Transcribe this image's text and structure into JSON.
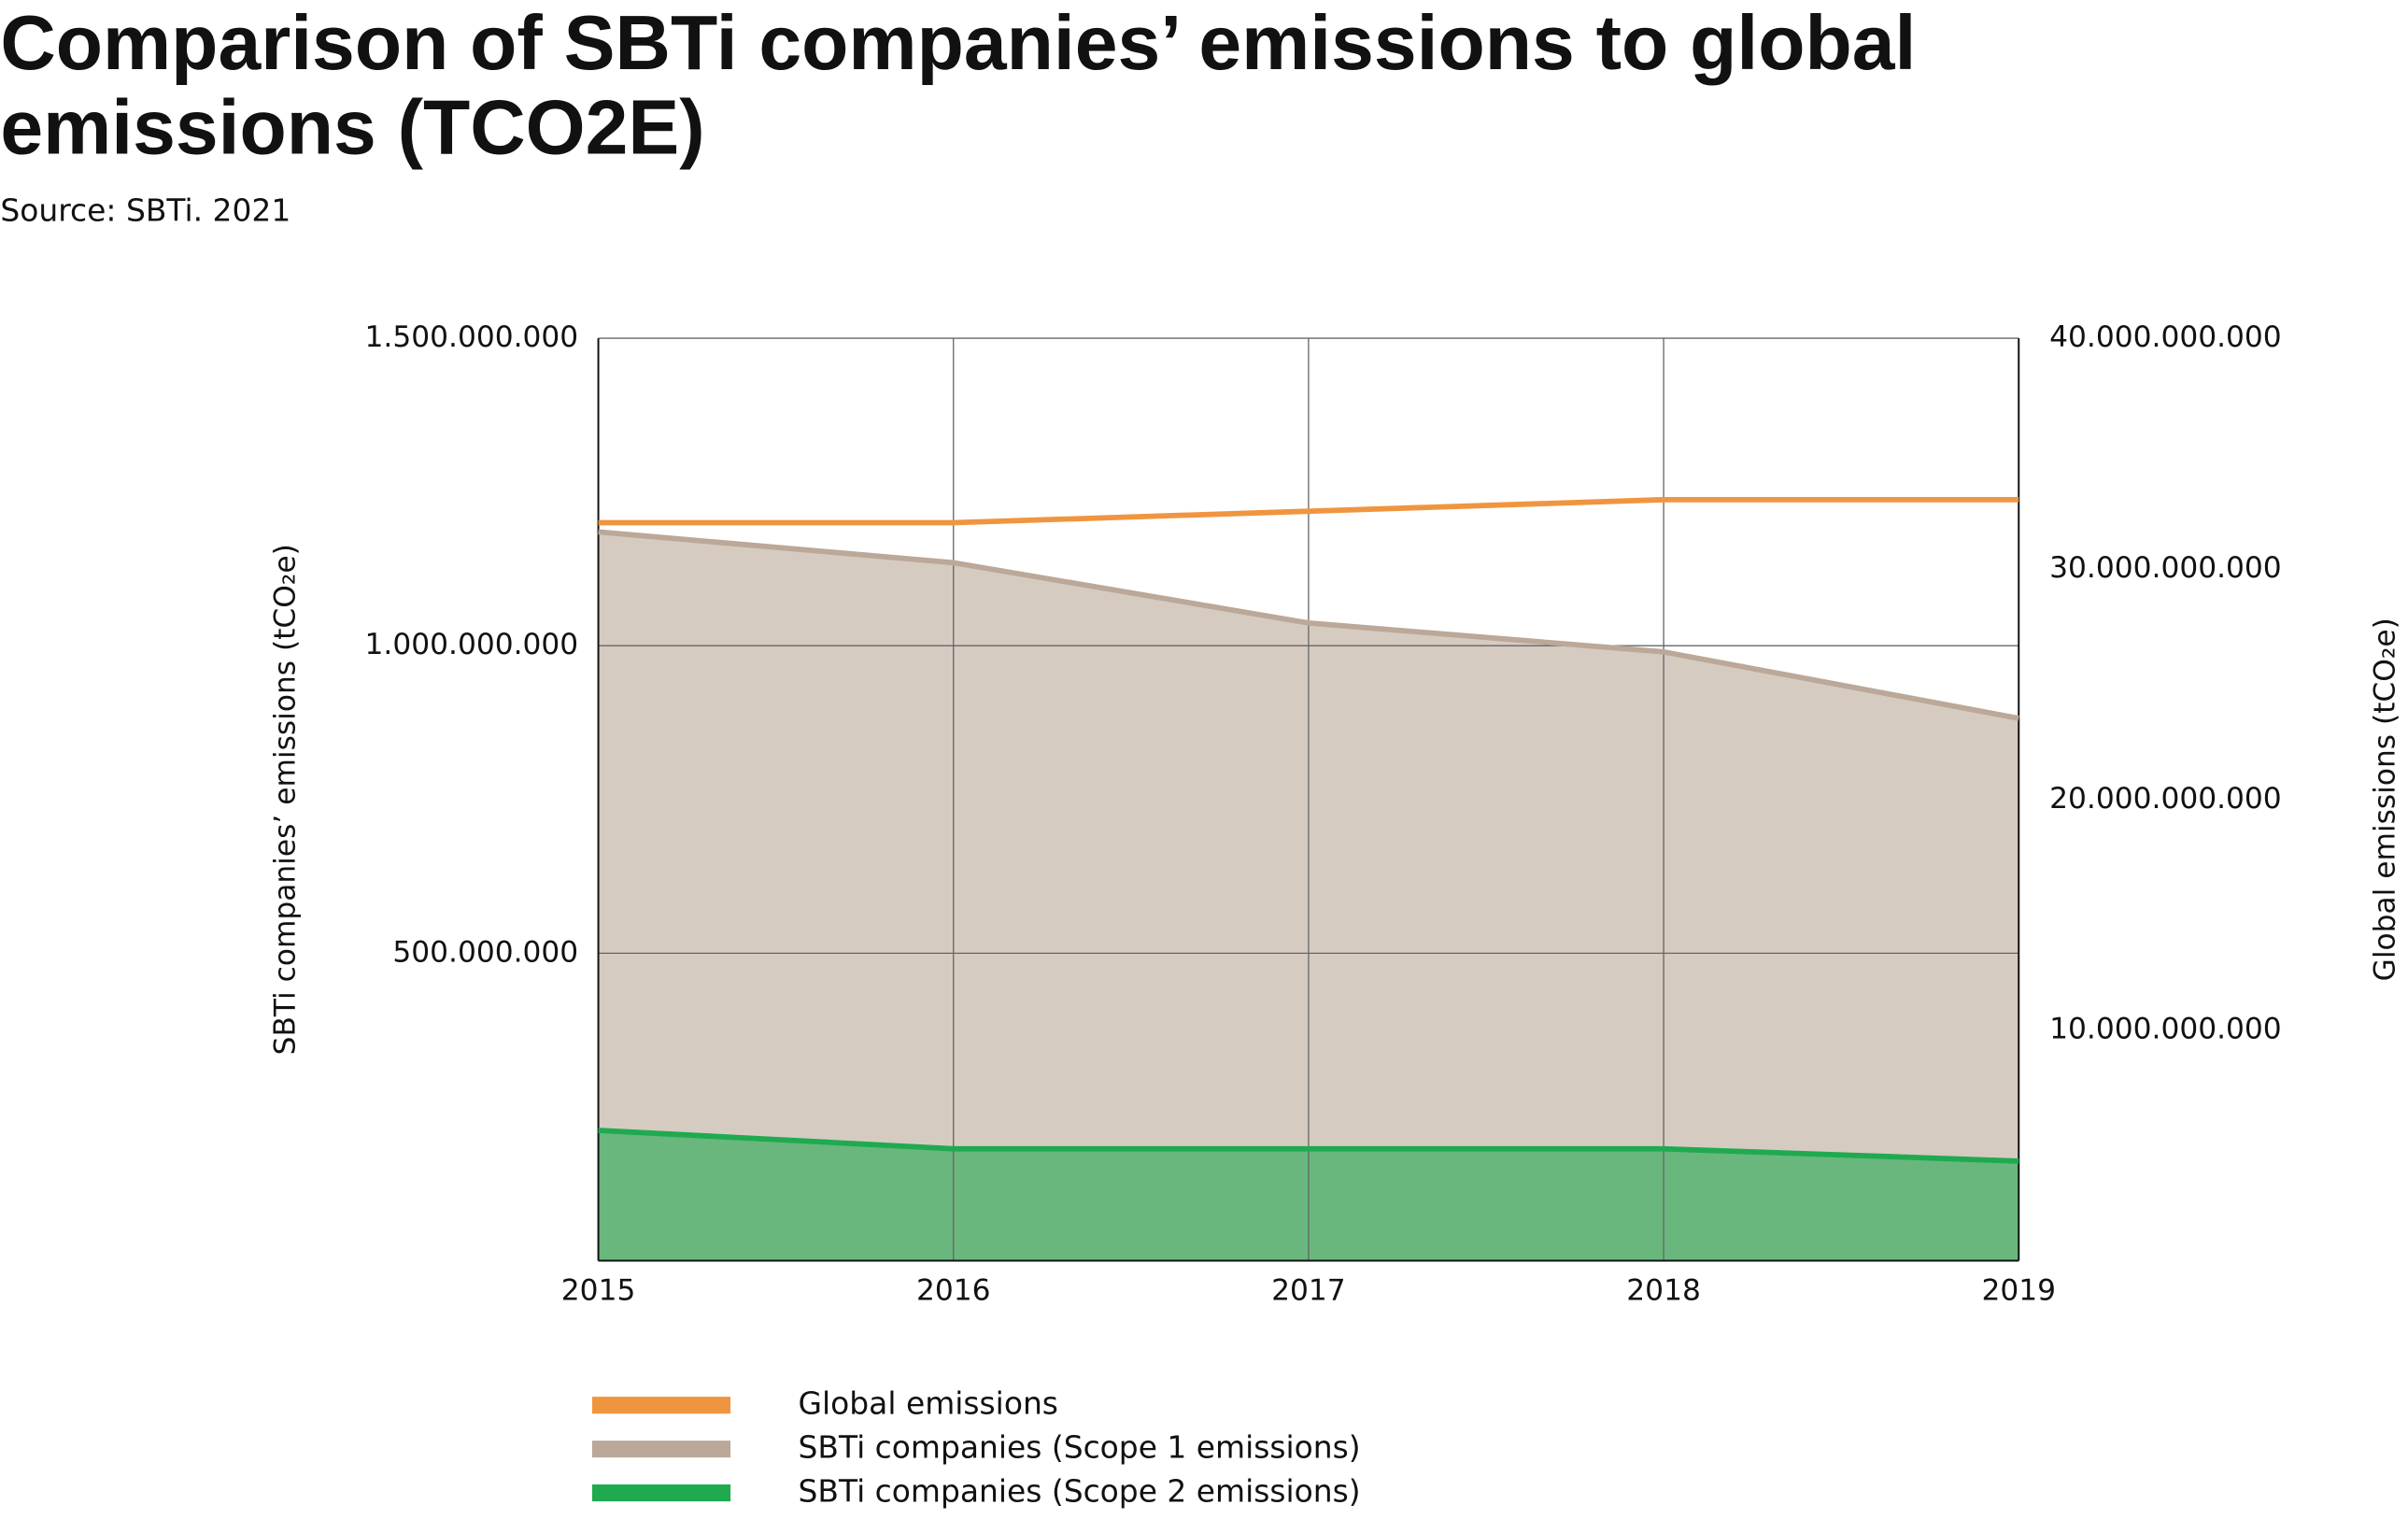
{
  "chart_data": {
    "type": "area",
    "title": [
      "Comparison of SBTi companies’ emissions to global",
      "emissions (TCO2E)"
    ],
    "subtitle": "Source: SBTi. 2021",
    "y_label": "SBTi companies’ emissions (tCO₂e)",
    "y2_label": "Global emissions (tCO₂e)",
    "categories": [
      "2015",
      "2016",
      "2017",
      "2018",
      "2019"
    ],
    "series": [
      {
        "name": "Global emissions",
        "color": "#f0953f",
        "axis": "y2",
        "values": [
          32000000000,
          32000000000,
          32500000000,
          33000000000,
          33000000000
        ]
      },
      {
        "name": "SBTi companies (Scope 1 emissions)",
        "color": "#bba898",
        "values": [
          1185000000,
          1135000000,
          1037000000,
          990000000,
          882000000
        ]
      },
      {
        "name": "SBTi companies (Scope 2 emissions)",
        "color": "#1faa50",
        "values": [
          212000000,
          182000000,
          182000000,
          182000000,
          162000000
        ]
      }
    ],
    "ylim": [
      0,
      1500000000
    ],
    "yticks": [
      {
        "value": 500000000,
        "label": "500.000.000"
      },
      {
        "value": 1000000000,
        "label": "1.000.000.000"
      },
      {
        "value": 1500000000,
        "label": "1.500.000.000"
      }
    ],
    "y2lim": [
      0,
      40000000000
    ],
    "y2ticks": [
      {
        "value": 10000000000,
        "label": "10.000.000.000"
      },
      {
        "value": 20000000000,
        "label": "20.000.000.000"
      },
      {
        "value": 30000000000,
        "label": "30.000.000.000"
      },
      {
        "value": 40000000000,
        "label": "40.000.000.000"
      }
    ],
    "grid": true
  }
}
